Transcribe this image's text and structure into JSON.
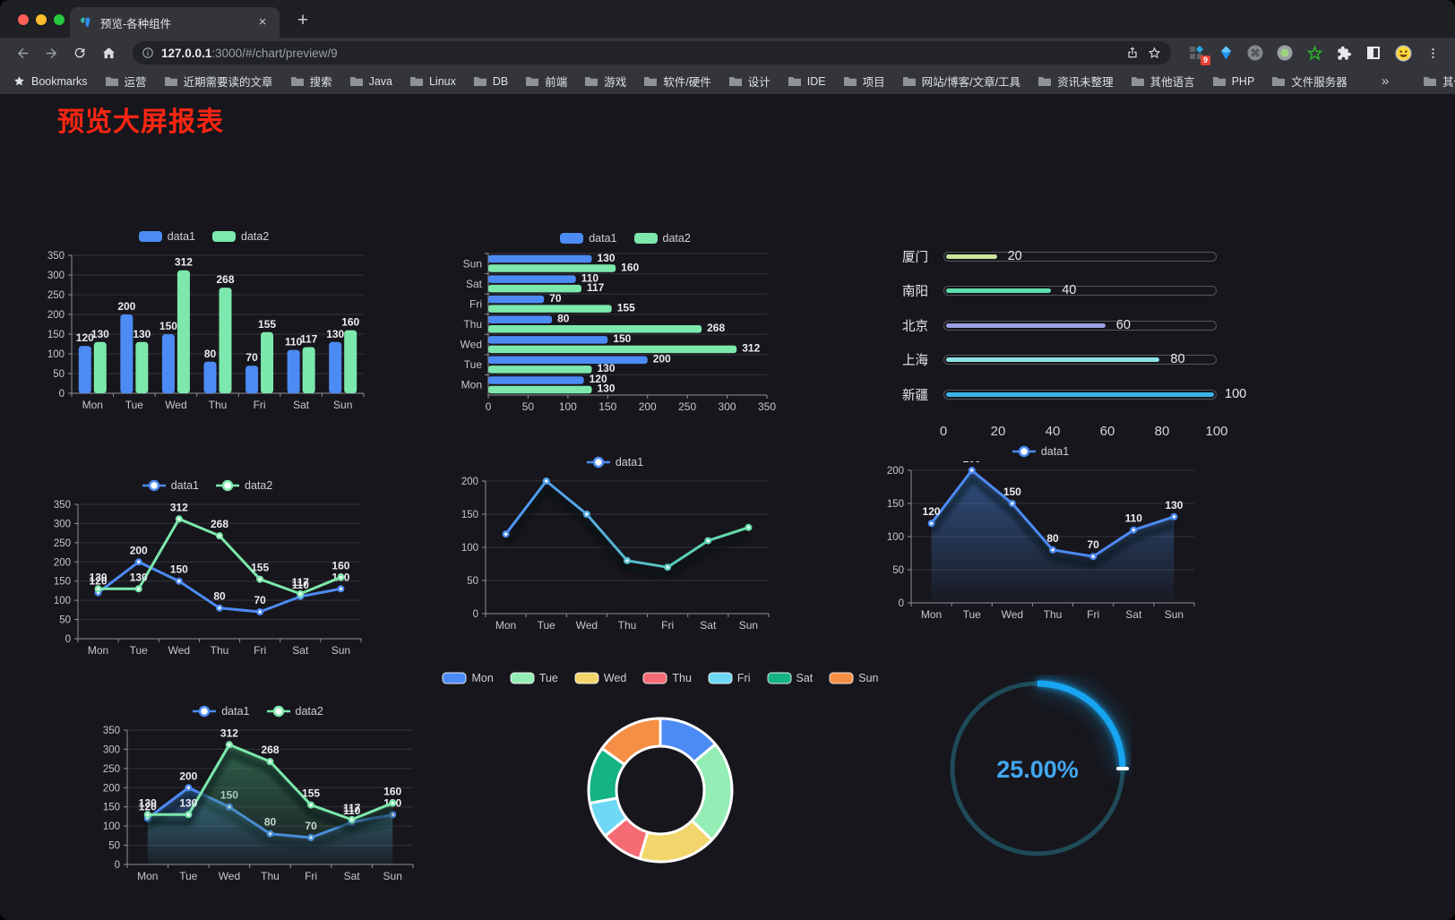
{
  "browser": {
    "tab": {
      "title": "预览-各种组件",
      "close_glyph": "×",
      "new_tab_glyph": "+"
    },
    "address": {
      "host": "127.0.0.1",
      "path": ":3000/#/chart/preview/9"
    },
    "extensions_badge": "9",
    "bookmarks": {
      "bar_label": "Bookmarks",
      "folders": [
        "运营",
        "近期需要读的文章",
        "搜索",
        "Java",
        "Linux",
        "DB",
        "前端",
        "游戏",
        "软件/硬件",
        "设计",
        "IDE",
        "项目",
        "网站/博客/文章/工具",
        "资讯未整理",
        "其他语言",
        "PHP",
        "文件服务器"
      ],
      "overflow_glyph": "»",
      "other_label": "其他书签"
    }
  },
  "page": {
    "title": "预览大屏报表",
    "title_color": "#fb2612"
  },
  "chart_data": [
    {
      "id": "bar-vertical",
      "type": "bar",
      "legend_pos": "top",
      "categories": [
        "Mon",
        "Tue",
        "Wed",
        "Thu",
        "Fri",
        "Sat",
        "Sun"
      ],
      "series": [
        {
          "name": "data1",
          "color": "#4C8BF4",
          "values": [
            120,
            200,
            150,
            80,
            70,
            110,
            130
          ]
        },
        {
          "name": "data2",
          "color": "#7CE8AC",
          "values": [
            130,
            130,
            312,
            268,
            155,
            117,
            160
          ]
        }
      ],
      "ylim": [
        0,
        350
      ],
      "ytick": 50,
      "value_labels": true,
      "grid": true
    },
    {
      "id": "bar-horizontal",
      "type": "bar-h",
      "legend_pos": "top",
      "categories": [
        "Mon",
        "Tue",
        "Wed",
        "Thu",
        "Fri",
        "Sat",
        "Sun"
      ],
      "series": [
        {
          "name": "data1",
          "color": "#4C8BF4",
          "values": [
            120,
            200,
            150,
            80,
            70,
            110,
            130
          ]
        },
        {
          "name": "data2",
          "color": "#7CE8AC",
          "values": [
            130,
            130,
            312,
            268,
            155,
            117,
            160
          ]
        }
      ],
      "xlim": [
        0,
        350
      ],
      "xtick": 50,
      "value_labels": true,
      "grid": true
    },
    {
      "id": "progress-bars",
      "type": "progress",
      "max": 100,
      "rows": [
        {
          "label": "厦门",
          "value": 20,
          "color": "#C8E59C"
        },
        {
          "label": "南阳",
          "value": 40,
          "color": "#5FE0AE"
        },
        {
          "label": "北京",
          "value": 60,
          "color": "#9B9FE3"
        },
        {
          "label": "上海",
          "value": 80,
          "color": "#8CE2E4"
        },
        {
          "label": "新疆",
          "value": 100,
          "color": "#3CB4E6"
        }
      ],
      "xticks": [
        0,
        20,
        40,
        60,
        80,
        100
      ]
    },
    {
      "id": "line-dual",
      "type": "line",
      "legend_pos": "top",
      "categories": [
        "Mon",
        "Tue",
        "Wed",
        "Thu",
        "Fri",
        "Sat",
        "Sun"
      ],
      "series": [
        {
          "name": "data1",
          "color": "#4C8BF4",
          "values": [
            120,
            200,
            150,
            80,
            70,
            110,
            130
          ]
        },
        {
          "name": "data2",
          "color": "#7CE8AC",
          "values": [
            130,
            130,
            312,
            268,
            155,
            117,
            160
          ]
        }
      ],
      "ylim": [
        0,
        350
      ],
      "ytick": 50,
      "value_labels": true,
      "grid": true
    },
    {
      "id": "line-gradient",
      "type": "line",
      "legend_pos": "top",
      "categories": [
        "Mon",
        "Tue",
        "Wed",
        "Thu",
        "Fri",
        "Sat",
        "Sun"
      ],
      "series": [
        {
          "name": "data1",
          "color": "#4C8BF4",
          "gradient": [
            "#4a8df5",
            "#55a9e5",
            "#57cdbb",
            "#6ae8a1"
          ],
          "values": [
            120,
            200,
            150,
            80,
            70,
            110,
            130
          ]
        }
      ],
      "ylim": [
        0,
        200
      ],
      "ytick": 50,
      "value_labels": false,
      "shadow": true,
      "grid": true
    },
    {
      "id": "area-single",
      "type": "line",
      "legend_pos": "top",
      "categories": [
        "Mon",
        "Tue",
        "Wed",
        "Thu",
        "Fri",
        "Sat",
        "Sun"
      ],
      "series": [
        {
          "name": "data1",
          "color": "#4C8BF4",
          "area_color": "#3F74BE",
          "values": [
            120,
            200,
            150,
            80,
            70,
            110,
            130
          ]
        }
      ],
      "ylim": [
        0,
        200
      ],
      "ytick": 50,
      "value_labels": true,
      "shadow": true,
      "grid": true
    },
    {
      "id": "area-dual",
      "type": "line",
      "legend_pos": "top",
      "categories": [
        "Mon",
        "Tue",
        "Wed",
        "Thu",
        "Fri",
        "Sat",
        "Sun"
      ],
      "series": [
        {
          "name": "data1",
          "color": "#4C8BF4",
          "area_color": "#3F74BE",
          "values": [
            120,
            200,
            150,
            80,
            70,
            110,
            130
          ]
        },
        {
          "name": "data2",
          "color": "#7CE8AC",
          "area_color": "#3E8F68",
          "values": [
            130,
            130,
            312,
            268,
            155,
            117,
            160
          ]
        }
      ],
      "ylim": [
        0,
        350
      ],
      "ytick": 50,
      "value_labels": true,
      "shadow": true,
      "grid": true
    },
    {
      "id": "pie-donut",
      "type": "pie",
      "legend_pos": "top",
      "items": [
        {
          "name": "Mon",
          "value": 120,
          "color": "#4C8BF4"
        },
        {
          "name": "Tue",
          "value": 200,
          "color": "#93EDB4"
        },
        {
          "name": "Wed",
          "value": 150,
          "color": "#F3D66B"
        },
        {
          "name": "Thu",
          "value": 80,
          "color": "#F56B74"
        },
        {
          "name": "Fri",
          "value": 70,
          "color": "#6FD8F5"
        },
        {
          "name": "Sat",
          "value": 110,
          "color": "#14B383"
        },
        {
          "name": "Sun",
          "value": 130,
          "color": "#F58F45"
        }
      ]
    },
    {
      "id": "gauge",
      "type": "gauge",
      "percent": 25,
      "label": "25.00%",
      "colors": {
        "arc": "#17A5F0",
        "track": "#1E4B57",
        "text": "#42A7F0"
      }
    }
  ]
}
